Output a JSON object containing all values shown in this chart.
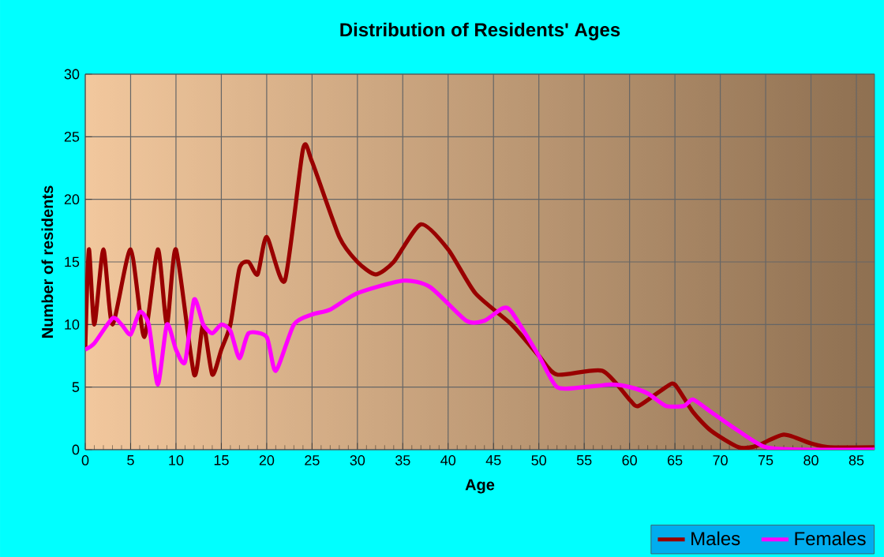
{
  "chart_data": {
    "type": "line",
    "title": "Distribution of Residents' Ages",
    "xlabel": "Age",
    "ylabel": "Number of residents",
    "xlim": [
      0,
      87
    ],
    "ylim": [
      0,
      30
    ],
    "xticks": [
      0,
      5,
      10,
      15,
      20,
      25,
      30,
      35,
      40,
      45,
      50,
      55,
      60,
      65,
      70,
      75,
      80,
      85
    ],
    "yticks": [
      0,
      5,
      10,
      15,
      20,
      25,
      30
    ],
    "grid": true,
    "legend": "bottom right",
    "series": [
      {
        "name": "Males",
        "color": "#990000",
        "x": [
          0,
          0.4,
          1,
          2,
          3,
          5,
          6.5,
          8,
          9,
          10,
          12,
          13,
          14,
          15,
          16,
          17,
          18,
          19,
          20,
          22,
          24,
          25,
          28,
          30,
          32,
          34,
          37,
          40,
          43,
          47,
          50,
          52,
          57,
          60,
          61,
          64,
          65,
          67,
          69,
          72,
          74,
          77,
          80,
          82,
          87
        ],
        "values": [
          8,
          16,
          10,
          16,
          10,
          16,
          9,
          16,
          10,
          16,
          6,
          10,
          6,
          8,
          10,
          14.5,
          15,
          14,
          17,
          13.5,
          24,
          23,
          17,
          15,
          14,
          15,
          18,
          16,
          12.5,
          10,
          7.5,
          6,
          6.3,
          4,
          3.5,
          5,
          5.2,
          3,
          1.5,
          0.2,
          0.3,
          1.2,
          0.5,
          0.2,
          0.2
        ]
      },
      {
        "name": "Females",
        "color": "#ff00ff",
        "x": [
          0,
          1,
          3,
          4,
          5,
          6,
          7,
          8,
          9,
          10,
          11,
          12,
          13,
          14,
          15,
          16,
          17,
          18,
          20,
          21,
          23,
          25,
          27,
          30,
          35,
          38,
          42,
          44,
          46,
          47,
          50,
          52,
          55,
          58,
          60,
          62,
          64,
          66,
          67,
          69,
          72,
          75,
          79,
          87
        ],
        "values": [
          8,
          8.5,
          10.5,
          10,
          9.2,
          11,
          10,
          5.2,
          10,
          8,
          7,
          12,
          10,
          9.3,
          10,
          9.5,
          7.3,
          9.3,
          9,
          6.3,
          10,
          10.8,
          11.2,
          12.5,
          13.5,
          13,
          10.3,
          10.3,
          11.3,
          11,
          7.5,
          5,
          5,
          5.2,
          5,
          4.5,
          3.5,
          3.5,
          4,
          3,
          1.5,
          0.2,
          0,
          0
        ]
      }
    ]
  }
}
